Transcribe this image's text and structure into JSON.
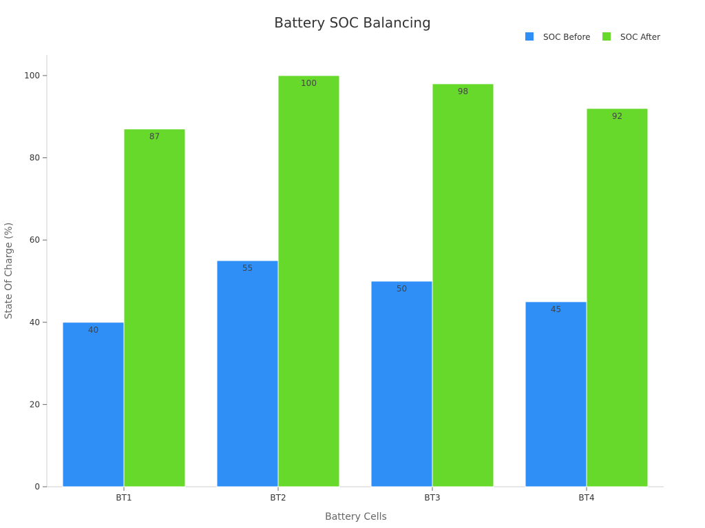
{
  "chart_data": {
    "type": "bar",
    "title": "Battery SOC Balancing",
    "xlabel": "Battery Cells",
    "ylabel": "State Of Charge (%)",
    "categories": [
      "BT1",
      "BT2",
      "BT3",
      "BT4"
    ],
    "series": [
      {
        "name": "SOC Before",
        "values": [
          40,
          55,
          50,
          45
        ],
        "color": "#2f8ff7"
      },
      {
        "name": "SOC After",
        "values": [
          87,
          100,
          98,
          92
        ],
        "color": "#66d92a"
      }
    ],
    "ylim": [
      0,
      105
    ],
    "yticks": [
      0,
      20,
      40,
      60,
      80,
      100
    ],
    "grid": false,
    "legend_position": "top-right",
    "data_labels": true
  }
}
